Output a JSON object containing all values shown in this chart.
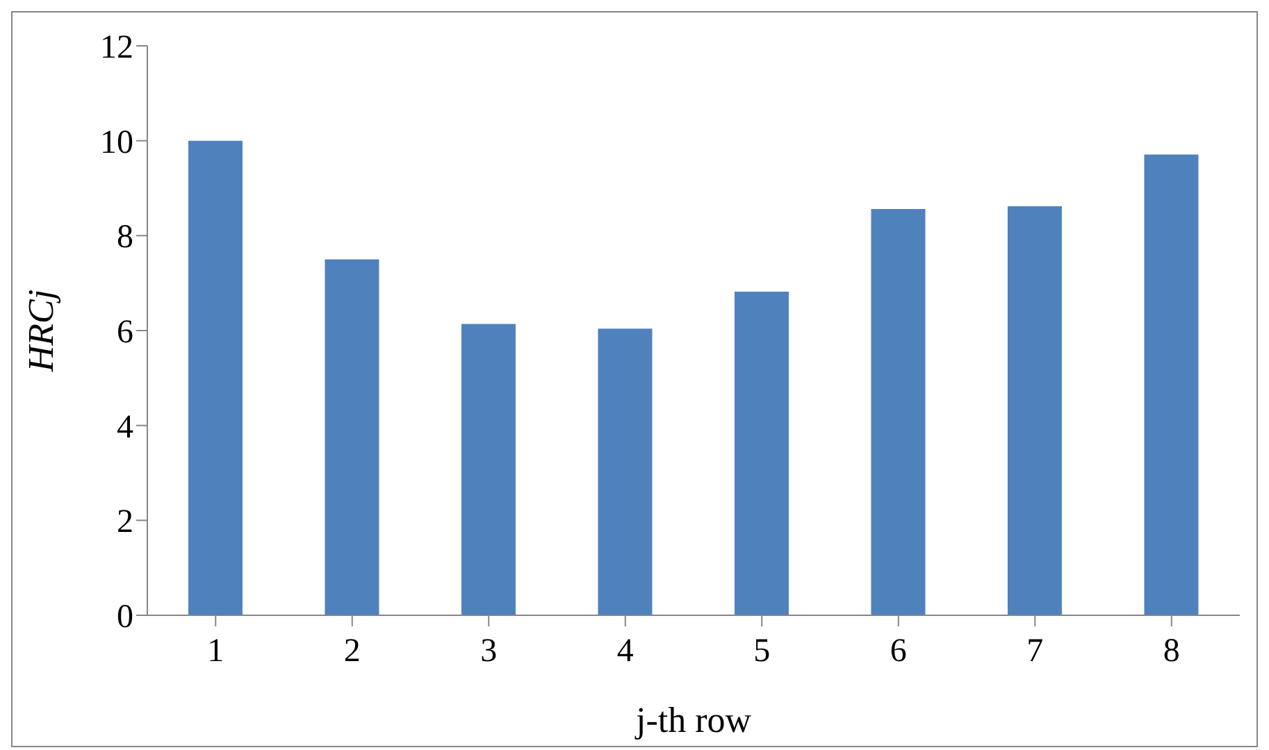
{
  "chart_data": {
    "type": "bar",
    "xlabel": "j-th row",
    "ylabel": "HRCj",
    "categories": [
      "1",
      "2",
      "3",
      "4",
      "5",
      "6",
      "7",
      "8"
    ],
    "values": [
      10,
      7.5,
      6.14,
      6.04,
      6.82,
      8.56,
      8.62,
      9.71
    ],
    "color": "#4f81bd",
    "ylim": [
      0,
      12
    ],
    "yticks": [
      0,
      2,
      4,
      6,
      8,
      10,
      12
    ],
    "grid": false,
    "legend": false
  }
}
